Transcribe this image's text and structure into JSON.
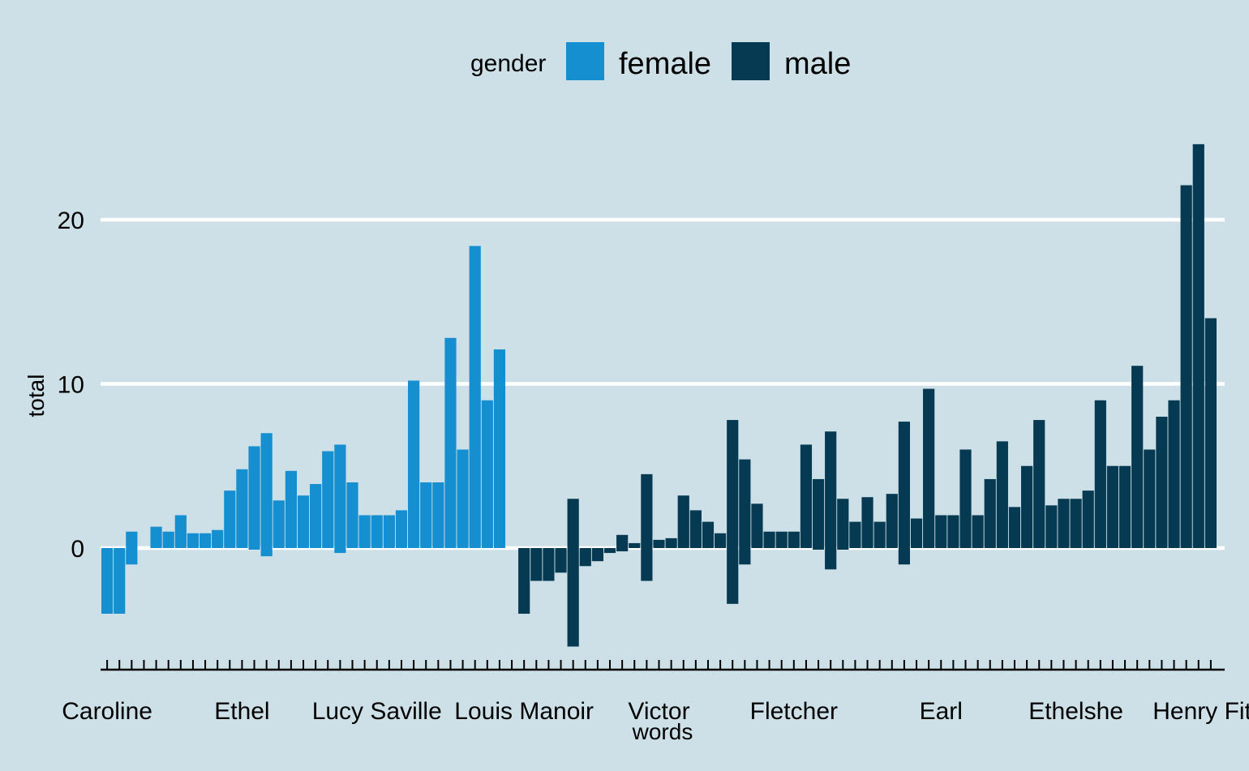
{
  "chart_data": {
    "type": "bar",
    "title": "",
    "xlabel": "words",
    "ylabel": "total",
    "ylim": [
      -7.5,
      25
    ],
    "y_ticks": [
      0,
      10,
      20
    ],
    "grid": true,
    "legend": {
      "title": "gender",
      "position": "top",
      "entries": [
        {
          "name": "female",
          "color": "#168fd1"
        },
        {
          "name": "male",
          "color": "#063a52"
        }
      ]
    },
    "colors": {
      "female": "#168fd1",
      "male": "#063a52",
      "background": "#cde0e7",
      "grid": "#ffffff"
    },
    "x_tick_labels": [
      {
        "label": "Caroline",
        "index": 0
      },
      {
        "label": "Ethel",
        "index": 11
      },
      {
        "label": "Lucy Saville",
        "index": 22
      },
      {
        "label": "Louis Manoir",
        "index": 34
      },
      {
        "label": "Victor",
        "index": 45
      },
      {
        "label": "Fletcher",
        "index": 56
      },
      {
        "label": "Earl",
        "index": 68
      },
      {
        "label": "Ethelshe",
        "index": 79
      },
      {
        "label": "Henry Fitzl",
        "index": 90
      }
    ],
    "series": [
      {
        "name": "female",
        "bars": [
          [
            -4
          ],
          [
            -4
          ],
          [
            1,
            -1
          ],
          [],
          [
            1.3
          ],
          [
            1
          ],
          [
            2
          ],
          [
            0.9
          ],
          [
            0.9
          ],
          [
            1.1
          ],
          [
            3.5
          ],
          [
            4.8
          ],
          [
            6.2,
            -0.1
          ],
          [
            7,
            -0.5
          ],
          [
            2.9
          ],
          [
            4.7
          ],
          [
            3.2
          ],
          [
            3.9
          ],
          [
            5.9
          ],
          [
            6.3,
            -0.3
          ],
          [
            4
          ],
          [
            2
          ],
          [
            2
          ],
          [
            2
          ],
          [
            2.3
          ],
          [
            10.2
          ],
          [
            4
          ],
          [
            4
          ],
          [
            12.8
          ],
          [
            6
          ],
          [
            18.4
          ],
          [
            9
          ],
          [
            12.1
          ]
        ]
      },
      {
        "name": "male",
        "start_index": 34,
        "bars": [
          [
            -4
          ],
          [
            -2
          ],
          [
            -2
          ],
          [
            -1.5
          ],
          [
            3,
            -6
          ],
          [
            -1.1
          ],
          [
            -0.8
          ],
          [
            -0.3
          ],
          [
            0.8,
            -0.2
          ],
          [
            0.3
          ],
          [
            4.5,
            -2
          ],
          [
            0.5
          ],
          [
            0.6
          ],
          [
            3.2
          ],
          [
            2.3
          ],
          [
            1.6
          ],
          [
            0.9
          ],
          [
            7.8,
            -3.4
          ],
          [
            5.4,
            -1
          ],
          [
            2.7
          ],
          [
            1
          ],
          [
            1
          ],
          [
            1
          ],
          [
            6.3
          ],
          [
            4.2,
            -0.1
          ],
          [
            7.1,
            -1.3
          ],
          [
            3,
            -0.1
          ],
          [
            1.6
          ],
          [
            3.1
          ],
          [
            1.6
          ],
          [
            3.3
          ],
          [
            7.7,
            -1
          ],
          [
            1.8
          ],
          [
            9.7
          ],
          [
            2
          ],
          [
            2
          ],
          [
            6
          ],
          [
            2
          ],
          [
            4.2
          ],
          [
            6.5
          ],
          [
            2.5
          ],
          [
            5
          ],
          [
            7.8
          ],
          [
            2.6
          ],
          [
            3
          ],
          [
            3
          ],
          [
            3.5
          ],
          [
            9
          ],
          [
            5
          ],
          [
            5
          ],
          [
            11.1
          ],
          [
            6
          ],
          [
            8
          ],
          [
            9
          ],
          [
            22.1
          ],
          [
            24.6
          ],
          [
            14
          ]
        ]
      }
    ]
  }
}
